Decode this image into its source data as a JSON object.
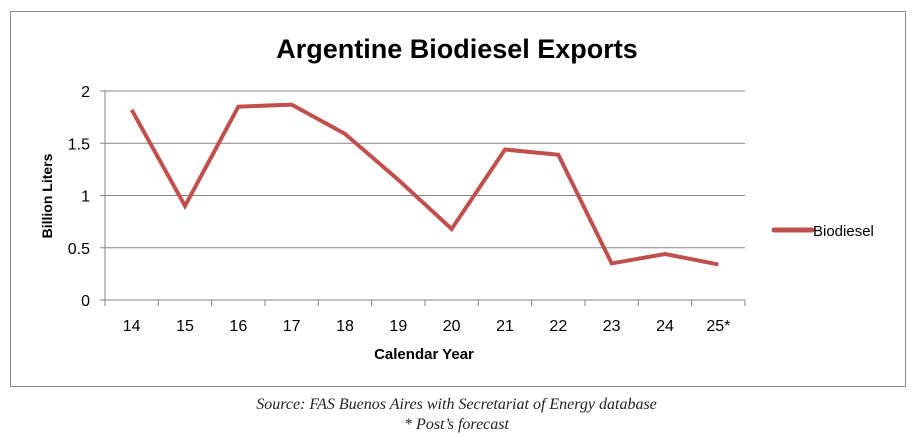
{
  "chart_data": {
    "type": "line",
    "title": "Argentine Biodiesel Exports",
    "xlabel": "Calendar Year",
    "ylabel": "Billion Liters",
    "categories": [
      "14",
      "15",
      "16",
      "17",
      "18",
      "19",
      "20",
      "21",
      "22",
      "23",
      "24",
      "25*"
    ],
    "series": [
      {
        "name": "Biodiesel",
        "color": "#c0504d",
        "values": [
          1.82,
          0.9,
          1.85,
          1.87,
          1.59,
          1.15,
          0.68,
          1.44,
          1.39,
          0.35,
          0.44,
          0.34
        ]
      }
    ],
    "ylim": [
      0,
      2
    ],
    "yticks": [
      "0",
      "0.5",
      "1",
      "1.5",
      "2"
    ],
    "grid": true,
    "legend": "right"
  },
  "footnotes": {
    "source": "Source: FAS Buenos Aires with Secretariat of Energy database",
    "forecast_note": "* Post’s forecast"
  }
}
